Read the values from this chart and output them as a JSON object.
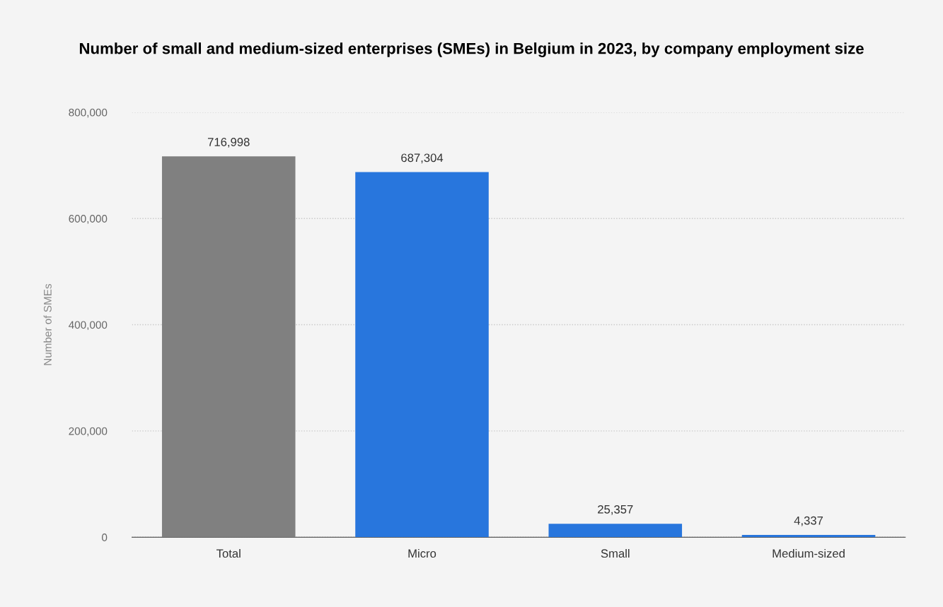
{
  "chart_data": {
    "type": "bar",
    "title": "Number of small and medium-sized enterprises (SMEs) in Belgium in 2023, by company employment size",
    "ylabel": "Number of SMEs",
    "categories": [
      "Total",
      "Micro",
      "Small",
      "Medium-sized"
    ],
    "values": [
      716998,
      687304,
      25357,
      4337
    ],
    "colors": [
      "#808080",
      "#2876dd",
      "#2876dd",
      "#2876dd"
    ],
    "ylim": [
      0,
      800000
    ],
    "yticks": [
      {
        "value": 0,
        "label": "0"
      },
      {
        "value": 200000,
        "label": "200,000"
      },
      {
        "value": 400000,
        "label": "400,000"
      },
      {
        "value": 600000,
        "label": "600,000"
      },
      {
        "value": 800000,
        "label": "800,000"
      }
    ],
    "value_labels": [
      "716,998",
      "687,304",
      "25,357",
      "4,337"
    ],
    "grid": "y"
  }
}
